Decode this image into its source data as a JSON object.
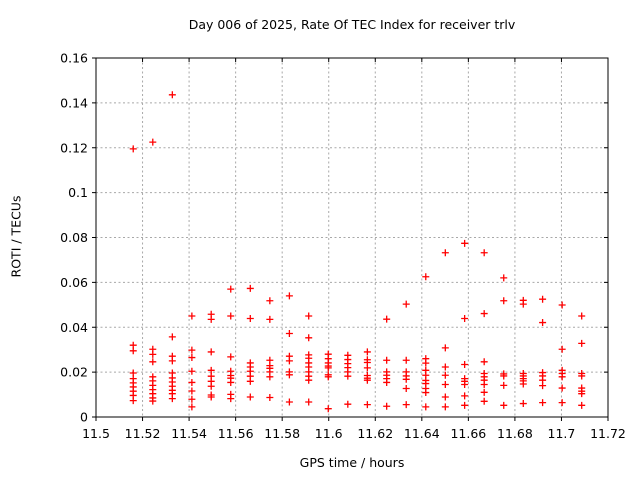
{
  "colors": {
    "background": "#ffffff",
    "marker": "#ff0000",
    "grid": "#a8a8a8",
    "axis": "#000000",
    "text": "#000000"
  },
  "chart_data": {
    "type": "scatter",
    "title": "Day 006 of 2025, Rate Of TEC Index for receiver trlv",
    "xlabel": "GPS time / hours",
    "ylabel": "ROTI / TECUs",
    "xlim": [
      11.5,
      11.72
    ],
    "ylim": [
      0,
      0.16
    ],
    "grid": true,
    "legend": "none",
    "marker_style": "plus",
    "xticks": [
      [
        11.5,
        "11.5"
      ],
      [
        11.52,
        "11.52"
      ],
      [
        11.54,
        "11.54"
      ],
      [
        11.56,
        "11.56"
      ],
      [
        11.58,
        "11.58"
      ],
      [
        11.6,
        "11.6"
      ],
      [
        11.62,
        "11.62"
      ],
      [
        11.64,
        "11.64"
      ],
      [
        11.66,
        "11.66"
      ],
      [
        11.68,
        "11.68"
      ],
      [
        11.7,
        "11.7"
      ],
      [
        11.72,
        "11.72"
      ]
    ],
    "yticks": [
      [
        0,
        "0"
      ],
      [
        0.02,
        "0.02"
      ],
      [
        0.04,
        "0.04"
      ],
      [
        0.06,
        "0.06"
      ],
      [
        0.08,
        "0.08"
      ],
      [
        0.1,
        "0.1"
      ],
      [
        0.12,
        "0.12"
      ],
      [
        0.14,
        "0.14"
      ],
      [
        0.16,
        "0.16"
      ]
    ],
    "columns": [
      {
        "t": 11.516,
        "values": [
          0.1195,
          0.032,
          0.0295,
          0.0196,
          0.0171,
          0.0152,
          0.0134,
          0.0115,
          0.0096,
          0.0073
        ]
      },
      {
        "t": 11.5244,
        "values": [
          0.1225,
          0.0302,
          0.0279,
          0.0246,
          0.0179,
          0.0161,
          0.0141,
          0.0122,
          0.0104,
          0.0085,
          0.0071
        ]
      },
      {
        "t": 11.5328,
        "values": [
          0.1436,
          0.0357,
          0.0271,
          0.025,
          0.0196,
          0.0174,
          0.0156,
          0.0137,
          0.0119,
          0.0104,
          0.0082
        ]
      },
      {
        "t": 11.5412,
        "values": [
          0.045,
          0.0298,
          0.0265,
          0.0204,
          0.0154,
          0.0116,
          0.0079,
          0.0045
        ]
      },
      {
        "t": 11.5495,
        "values": [
          0.0458,
          0.0435,
          0.029,
          0.0208,
          0.0182,
          0.0159,
          0.0137,
          0.0098,
          0.0089
        ]
      },
      {
        "t": 11.5579,
        "values": [
          0.057,
          0.045,
          0.0268,
          0.0204,
          0.0185,
          0.0173,
          0.0154,
          0.0101,
          0.0082
        ]
      },
      {
        "t": 11.5663,
        "values": [
          0.0573,
          0.0439,
          0.0241,
          0.0223,
          0.0204,
          0.0182,
          0.0159,
          0.0089
        ]
      },
      {
        "t": 11.5747,
        "values": [
          0.0518,
          0.0435,
          0.0253,
          0.0229,
          0.0217,
          0.0201,
          0.0179,
          0.0087
        ]
      },
      {
        "t": 11.5831,
        "values": [
          0.054,
          0.0372,
          0.0271,
          0.025,
          0.0201,
          0.0188,
          0.0067
        ]
      },
      {
        "t": 11.5914,
        "values": [
          0.045,
          0.0353,
          0.0277,
          0.0262,
          0.0241,
          0.0223,
          0.0201,
          0.0182,
          0.0164,
          0.0067
        ]
      },
      {
        "t": 11.5998,
        "values": [
          0.028,
          0.026,
          0.0241,
          0.0227,
          0.0219,
          0.0188,
          0.0179,
          0.0037
        ]
      },
      {
        "t": 11.6082,
        "values": [
          0.0275,
          0.0256,
          0.0238,
          0.022,
          0.0201,
          0.0182,
          0.0057
        ]
      },
      {
        "t": 11.6166,
        "values": [
          0.029,
          0.0255,
          0.0243,
          0.0219,
          0.0185,
          0.0173,
          0.0164,
          0.0055
        ]
      },
      {
        "t": 11.6249,
        "values": [
          0.0436,
          0.0253,
          0.0201,
          0.0186,
          0.0171,
          0.0154,
          0.0048
        ]
      },
      {
        "t": 11.6333,
        "values": [
          0.0503,
          0.0253,
          0.0201,
          0.0183,
          0.0168,
          0.0127,
          0.0055
        ]
      },
      {
        "t": 11.6417,
        "values": [
          0.0625,
          0.026,
          0.024,
          0.0208,
          0.0186,
          0.0163,
          0.0149,
          0.0127,
          0.0109,
          0.0045
        ]
      },
      {
        "t": 11.6501,
        "values": [
          0.0732,
          0.0308,
          0.0223,
          0.0186,
          0.0145,
          0.0089,
          0.0045
        ]
      },
      {
        "t": 11.6584,
        "values": [
          0.0774,
          0.0439,
          0.0234,
          0.0171,
          0.0159,
          0.0145,
          0.0094,
          0.0052
        ]
      },
      {
        "t": 11.6668,
        "values": [
          0.0732,
          0.0461,
          0.0246,
          0.0194,
          0.0179,
          0.0164,
          0.0145,
          0.011,
          0.007
        ]
      },
      {
        "t": 11.6752,
        "values": [
          0.062,
          0.0518,
          0.0192,
          0.0183,
          0.0141,
          0.0052
        ]
      },
      {
        "t": 11.6836,
        "values": [
          0.052,
          0.0503,
          0.0194,
          0.0183,
          0.0171,
          0.0161,
          0.0147,
          0.006
        ]
      },
      {
        "t": 11.6919,
        "values": [
          0.0525,
          0.0421,
          0.0198,
          0.0183,
          0.0164,
          0.014,
          0.0064
        ]
      },
      {
        "t": 11.7003,
        "values": [
          0.0499,
          0.0302,
          0.0208,
          0.0194,
          0.0179,
          0.0129,
          0.0064
        ]
      },
      {
        "t": 11.7087,
        "values": [
          0.045,
          0.0328,
          0.0194,
          0.0183,
          0.0129,
          0.0115,
          0.0104,
          0.0052
        ]
      }
    ]
  }
}
